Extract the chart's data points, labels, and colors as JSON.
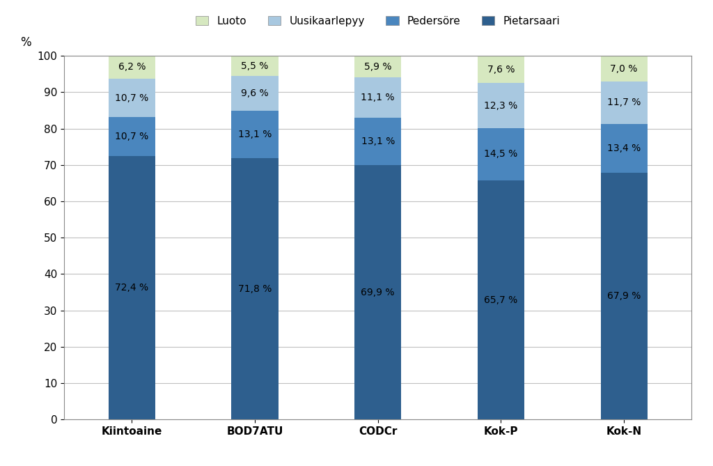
{
  "categories": [
    "Kiintoaine",
    "BOD7ATU",
    "CODCr",
    "Kok-P",
    "Kok-N"
  ],
  "series": {
    "Pietarsaari": [
      72.4,
      71.8,
      69.9,
      65.7,
      67.9
    ],
    "Pedersöre": [
      10.7,
      13.1,
      13.1,
      14.5,
      13.4
    ],
    "Uusikaarlepyy": [
      10.7,
      9.6,
      11.1,
      12.3,
      11.7
    ],
    "Luoto": [
      6.2,
      5.5,
      5.9,
      7.6,
      7.0
    ]
  },
  "colors": {
    "Pietarsaari": "#2E5F8E",
    "Pedersöre": "#4A86BE",
    "Uusikaarlepyy": "#A8C8E0",
    "Luoto": "#D6E8C0"
  },
  "legend_order": [
    "Luoto",
    "Uusikaarlepyy",
    "Pedersöre",
    "Pietarsaari"
  ],
  "ylabel": "%",
  "ylim": [
    0,
    100
  ],
  "yticks": [
    0,
    10,
    20,
    30,
    40,
    50,
    60,
    70,
    80,
    90,
    100
  ],
  "bar_width": 0.38,
  "figsize": [
    10.24,
    6.69
  ],
  "dpi": 100,
  "background_color": "#FFFFFF",
  "grid_color": "#C0C0C0",
  "label_fontsize": 10,
  "legend_fontsize": 11,
  "ylabel_fontsize": 12,
  "tick_fontsize": 11
}
